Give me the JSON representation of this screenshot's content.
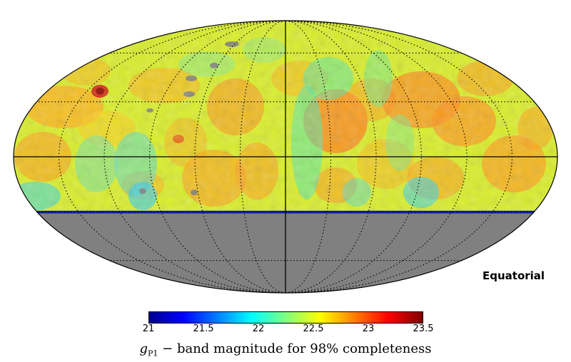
{
  "chart_data": {
    "type": "heatmap",
    "projection": "mollweide",
    "coordinate_system_label": "Equatorial",
    "colormap": "jet",
    "color_range": [
      21,
      23.5
    ],
    "colorbar_ticks": [
      "21",
      "21.5",
      "22",
      "22.5",
      "23",
      "23.5"
    ],
    "colorbar_label": {
      "symbol": "g",
      "subscript": "P1",
      "text": " − band magnitude for 98% completeness"
    },
    "no_data_color": "#808080",
    "coverage_min_dec_deg": -30,
    "grid": "dotted graticule, 30° spacing",
    "features": [
      {
        "desc": "mostly 22.5–23 yellow/orange over sky"
      },
      {
        "desc": "cyan band near ~22 across mid-sky"
      },
      {
        "desc": "dark blue ~21 rim along southern coverage limit"
      },
      {
        "desc": "red hotspot ~23.4 upper-left"
      }
    ]
  }
}
